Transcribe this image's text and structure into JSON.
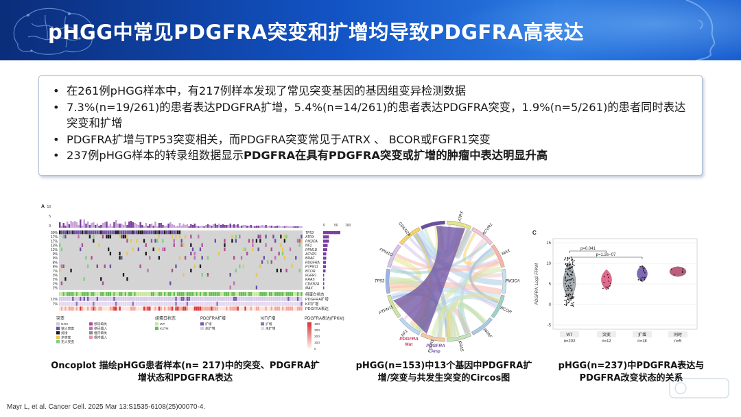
{
  "title": "pHGG中常见PDGFRA突变和扩增均导致PDGFRA高表达",
  "bullets": [
    "在261例pHGG样本中，有217例样本发现了常见突变基因的基因组变异检测数据",
    "7.3%(n=19/261)的患者表达PDGFRA扩增，5.4%(n=14/261)的患者表达PDGFRA突变，1.9%(n=5/261)的患者同时表达突变和扩增",
    "PDGFRA扩增与TP53突变相关，而PDGFRA突变常见于ATRX 、 BCOR或FGFR1突变"
  ],
  "bullet4_prefix": "237例pHGG样本的转录组数据显示",
  "bullet4_bold": "PDGFRA在具有PDGFRA突变或扩增的肿瘤中表达明显升高",
  "panel_a": {
    "label": "A",
    "y_ticks": [
      "10",
      "5",
      "0"
    ],
    "top_ticks": [
      "0",
      "50",
      "100"
    ],
    "percents": [
      "50%",
      "17%",
      "17%",
      "13%",
      "12%",
      "9%",
      "9%",
      "8%",
      "8%",
      "7%",
      "3%",
      "2%",
      "2%",
      "2%"
    ],
    "genes": [
      "TP53",
      "ATRX",
      "PIK3CA",
      "NF1",
      "PPM1D",
      "ACVR1",
      "BRAF",
      "PDGFRA",
      "PTPN11",
      "BCOR",
      "FGFR1",
      "KRAS",
      "CDKN2A",
      "MAX"
    ],
    "annot_percents": [
      "12%",
      "7%"
    ],
    "annot_labels": [
      "组蛋白状态",
      "PDGFRA扩增",
      "KIT扩增",
      "PDGFRA表达"
    ],
    "legend": {
      "mut_title": "突变",
      "mut_items": [
        "NOS",
        "错义突变",
        "剪接",
        "多突变",
        "无义突变",
        "移码缺失",
        "移码插入",
        "框内缺失",
        "框内插入"
      ],
      "hist_title": "组蛋白状态",
      "hist_items": [
        "WT",
        "K27M"
      ],
      "pdgfra_amp_title": "PDGFRA扩增",
      "pdgfra_amp_items": [
        "扩增",
        "未扩增"
      ],
      "kit_amp_title": "KIT扩增",
      "kit_amp_items": [
        "扩增",
        "未扩增"
      ],
      "expr_title": "PDGFRA表达(FPKM)",
      "expr_ticks": [
        "400",
        "300",
        "200",
        "100",
        "0"
      ]
    }
  },
  "panel_b": {
    "genes": [
      "ATRX",
      "ACVR1",
      "MAX",
      "PIK3CA",
      "BCOR",
      "BRAF",
      "KRAS",
      "FGFR1",
      "NF1",
      "PTPN11",
      "TP53",
      "PPM1D",
      "CDKN2A"
    ],
    "pdgfra_label": "PDGFRA",
    "mut_label": "Mut",
    "amp_label": "Amp"
  },
  "panel_c": {
    "label": "C",
    "ylabel": "PDGFRA; Log2 FPKM",
    "y_ticks": [
      "15",
      "10",
      "5",
      "0",
      "-5"
    ],
    "pvalues": [
      "p=0.041",
      "p=1.2e−07"
    ],
    "groups": [
      {
        "name": "WT",
        "n": "n=202"
      },
      {
        "name": "突变",
        "n": "n=12"
      },
      {
        "name": "扩增",
        "n": "n=18"
      },
      {
        "name": "同时",
        "n": "n=5"
      }
    ],
    "colors": {
      "wt": "#9aa0a6",
      "mut": "#e0507a",
      "amp": "#6a4fa8",
      "both": "#b0426a"
    }
  },
  "captions": {
    "a": "Oncoplot 描绘pHGG患者样本(n= 217)中的突变、PDGFRA扩增状态和PDGFRA表达",
    "b": "pHGG(n=153)中13个基因中PDGFRA扩增/突变与共发生突变的Circos图",
    "c": "pHGG(n=237)中PDGFRA表达与PDGFRA改变状态的关系"
  },
  "reference": "Mayr L, et al. Cancer Cell. 2025 Mar 13:S1535-6108(25)00070-4."
}
